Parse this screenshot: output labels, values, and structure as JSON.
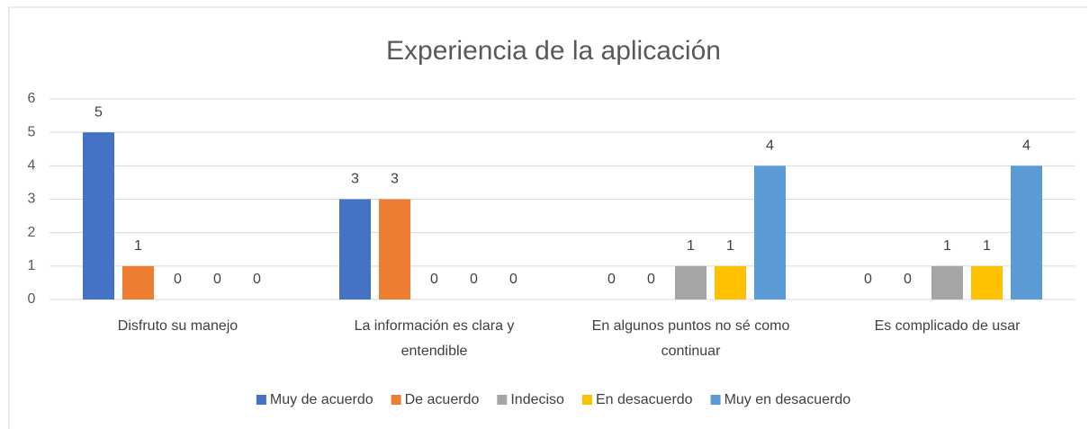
{
  "chart_data": {
    "type": "bar",
    "title": "Experiencia de la aplicación",
    "categories": [
      "Disfruto su manejo",
      "La información es clara y entendible",
      "En algunos puntos no sé como continuar",
      "Es complicado de usar"
    ],
    "series": [
      {
        "name": "Muy de acuerdo",
        "color": "#4472c4",
        "values": [
          5,
          3,
          0,
          0
        ]
      },
      {
        "name": "De acuerdo",
        "color": "#ed7d31",
        "values": [
          1,
          3,
          0,
          0
        ]
      },
      {
        "name": "Indeciso",
        "color": "#a5a5a5",
        "values": [
          0,
          0,
          1,
          1
        ]
      },
      {
        "name": "En desacuerdo",
        "color": "#ffc000",
        "values": [
          0,
          0,
          1,
          1
        ]
      },
      {
        "name": "Muy en desacuerdo",
        "color": "#5b9bd5",
        "values": [
          0,
          0,
          4,
          4
        ]
      }
    ],
    "ylim": [
      0,
      6
    ],
    "yticks": [
      0,
      1,
      2,
      3,
      4,
      5,
      6
    ],
    "grid": true,
    "legend": "bottom"
  }
}
